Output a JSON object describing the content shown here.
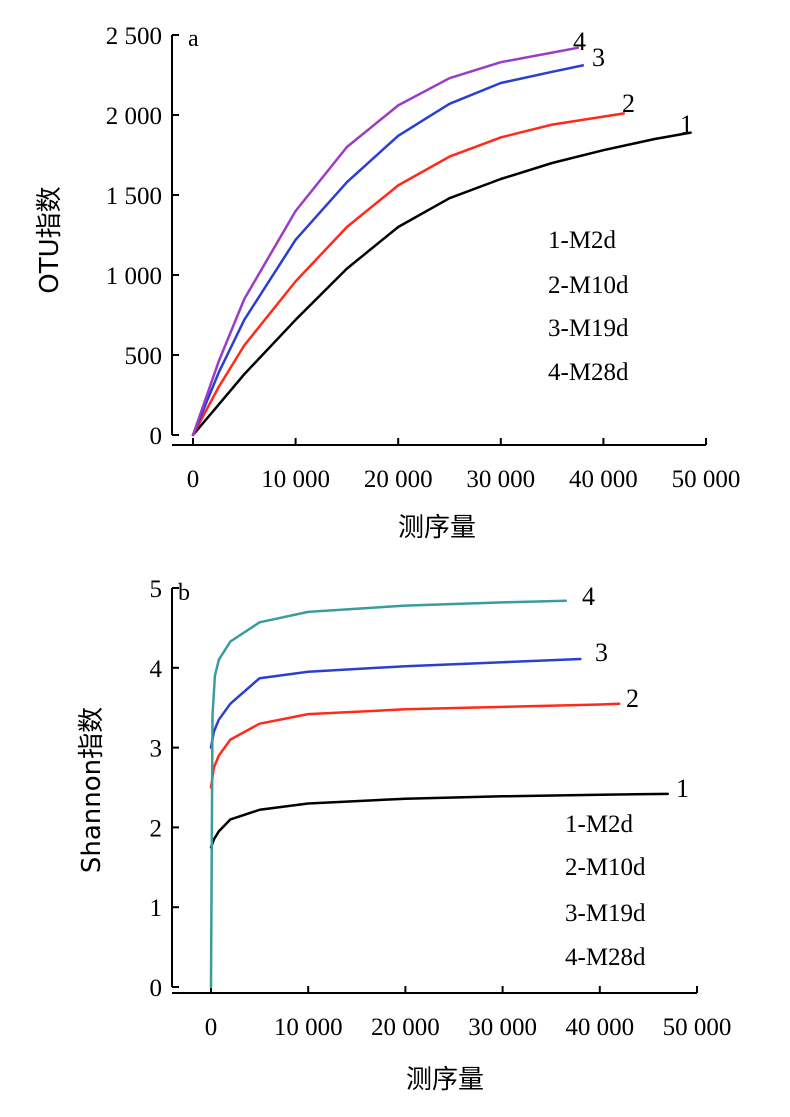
{
  "chart_data": [
    {
      "type": "line",
      "panel_label": "a",
      "xlabel": "测序量",
      "ylabel": "OTU指数",
      "xlim": [
        0,
        50000
      ],
      "ylim": [
        0,
        2500
      ],
      "xticks": [
        0,
        10000,
        20000,
        30000,
        40000,
        50000
      ],
      "xtick_labels": [
        "0",
        "10 000",
        "20 000",
        "30 000",
        "40 000",
        "50 000"
      ],
      "yticks": [
        0,
        500,
        1000,
        1500,
        2000,
        2500
      ],
      "ytick_labels": [
        "0",
        "500",
        "1 000",
        "1 500",
        "2 000",
        "2 500"
      ],
      "grid": false,
      "legend_placement": "center-right",
      "legend": [
        "1-M2d",
        "2-M10d",
        "3-M19d",
        "4-M28d"
      ],
      "series": [
        {
          "name": "1",
          "color": "#000000",
          "x": [
            0,
            2500,
            5000,
            10000,
            15000,
            20000,
            25000,
            30000,
            35000,
            40000,
            45000,
            48500
          ],
          "y": [
            0,
            190,
            380,
            720,
            1040,
            1300,
            1480,
            1600,
            1700,
            1780,
            1850,
            1890
          ]
        },
        {
          "name": "2",
          "color": "#ff2a1a",
          "x": [
            0,
            2500,
            5000,
            10000,
            15000,
            20000,
            25000,
            30000,
            35000,
            40000,
            42000
          ],
          "y": [
            0,
            300,
            560,
            960,
            1300,
            1560,
            1740,
            1860,
            1940,
            1990,
            2010
          ]
        },
        {
          "name": "3",
          "color": "#2a3fd0",
          "x": [
            0,
            2500,
            5000,
            10000,
            15000,
            20000,
            25000,
            30000,
            35000,
            38000
          ],
          "y": [
            0,
            390,
            720,
            1220,
            1580,
            1870,
            2070,
            2200,
            2270,
            2310
          ]
        },
        {
          "name": "4",
          "color": "#9a3cc6",
          "x": [
            0,
            2500,
            5000,
            10000,
            15000,
            20000,
            25000,
            30000,
            35000,
            37500
          ],
          "y": [
            0,
            460,
            850,
            1400,
            1800,
            2060,
            2230,
            2330,
            2390,
            2420
          ]
        }
      ]
    },
    {
      "type": "line",
      "panel_label": "b",
      "xlabel": "测序量",
      "ylabel": "Shannon指数",
      "xlim": [
        -5000,
        50000
      ],
      "ylim": [
        0,
        5
      ],
      "xticks": [
        0,
        10000,
        20000,
        30000,
        40000,
        50000
      ],
      "xtick_labels": [
        "0",
        "10 000",
        "20 000",
        "30 000",
        "40 000",
        "50 000"
      ],
      "yticks": [
        0,
        1,
        2,
        3,
        4,
        5
      ],
      "ytick_labels": [
        "0",
        "1",
        "2",
        "3",
        "4",
        "5"
      ],
      "grid": false,
      "legend_placement": "bottom-right",
      "legend": [
        "1-M2d",
        "2-M10d",
        "3-M19d",
        "4-M28d"
      ],
      "series": [
        {
          "name": "1",
          "color": "#000000",
          "x": [
            0,
            300,
            800,
            2000,
            5000,
            10000,
            20000,
            30000,
            40000,
            47000
          ],
          "y": [
            1.75,
            1.85,
            1.95,
            2.1,
            2.22,
            2.3,
            2.36,
            2.39,
            2.41,
            2.42
          ]
        },
        {
          "name": "2",
          "color": "#ff2a1a",
          "x": [
            0,
            300,
            800,
            2000,
            5000,
            10000,
            20000,
            30000,
            40000,
            42000
          ],
          "y": [
            2.5,
            2.75,
            2.9,
            3.1,
            3.3,
            3.42,
            3.48,
            3.51,
            3.54,
            3.55
          ]
        },
        {
          "name": "3",
          "color": "#2a3fd0",
          "x": [
            0,
            300,
            800,
            2000,
            5000,
            10000,
            20000,
            30000,
            38000
          ],
          "y": [
            3.0,
            3.2,
            3.35,
            3.55,
            3.87,
            3.95,
            4.02,
            4.07,
            4.11
          ]
        },
        {
          "name": "4",
          "color": "#3a9c9c",
          "x": [
            0,
            150,
            400,
            800,
            2000,
            5000,
            10000,
            20000,
            30000,
            36500
          ],
          "y": [
            0,
            3.4,
            3.9,
            4.1,
            4.33,
            4.57,
            4.7,
            4.78,
            4.82,
            4.84
          ]
        }
      ]
    }
  ]
}
